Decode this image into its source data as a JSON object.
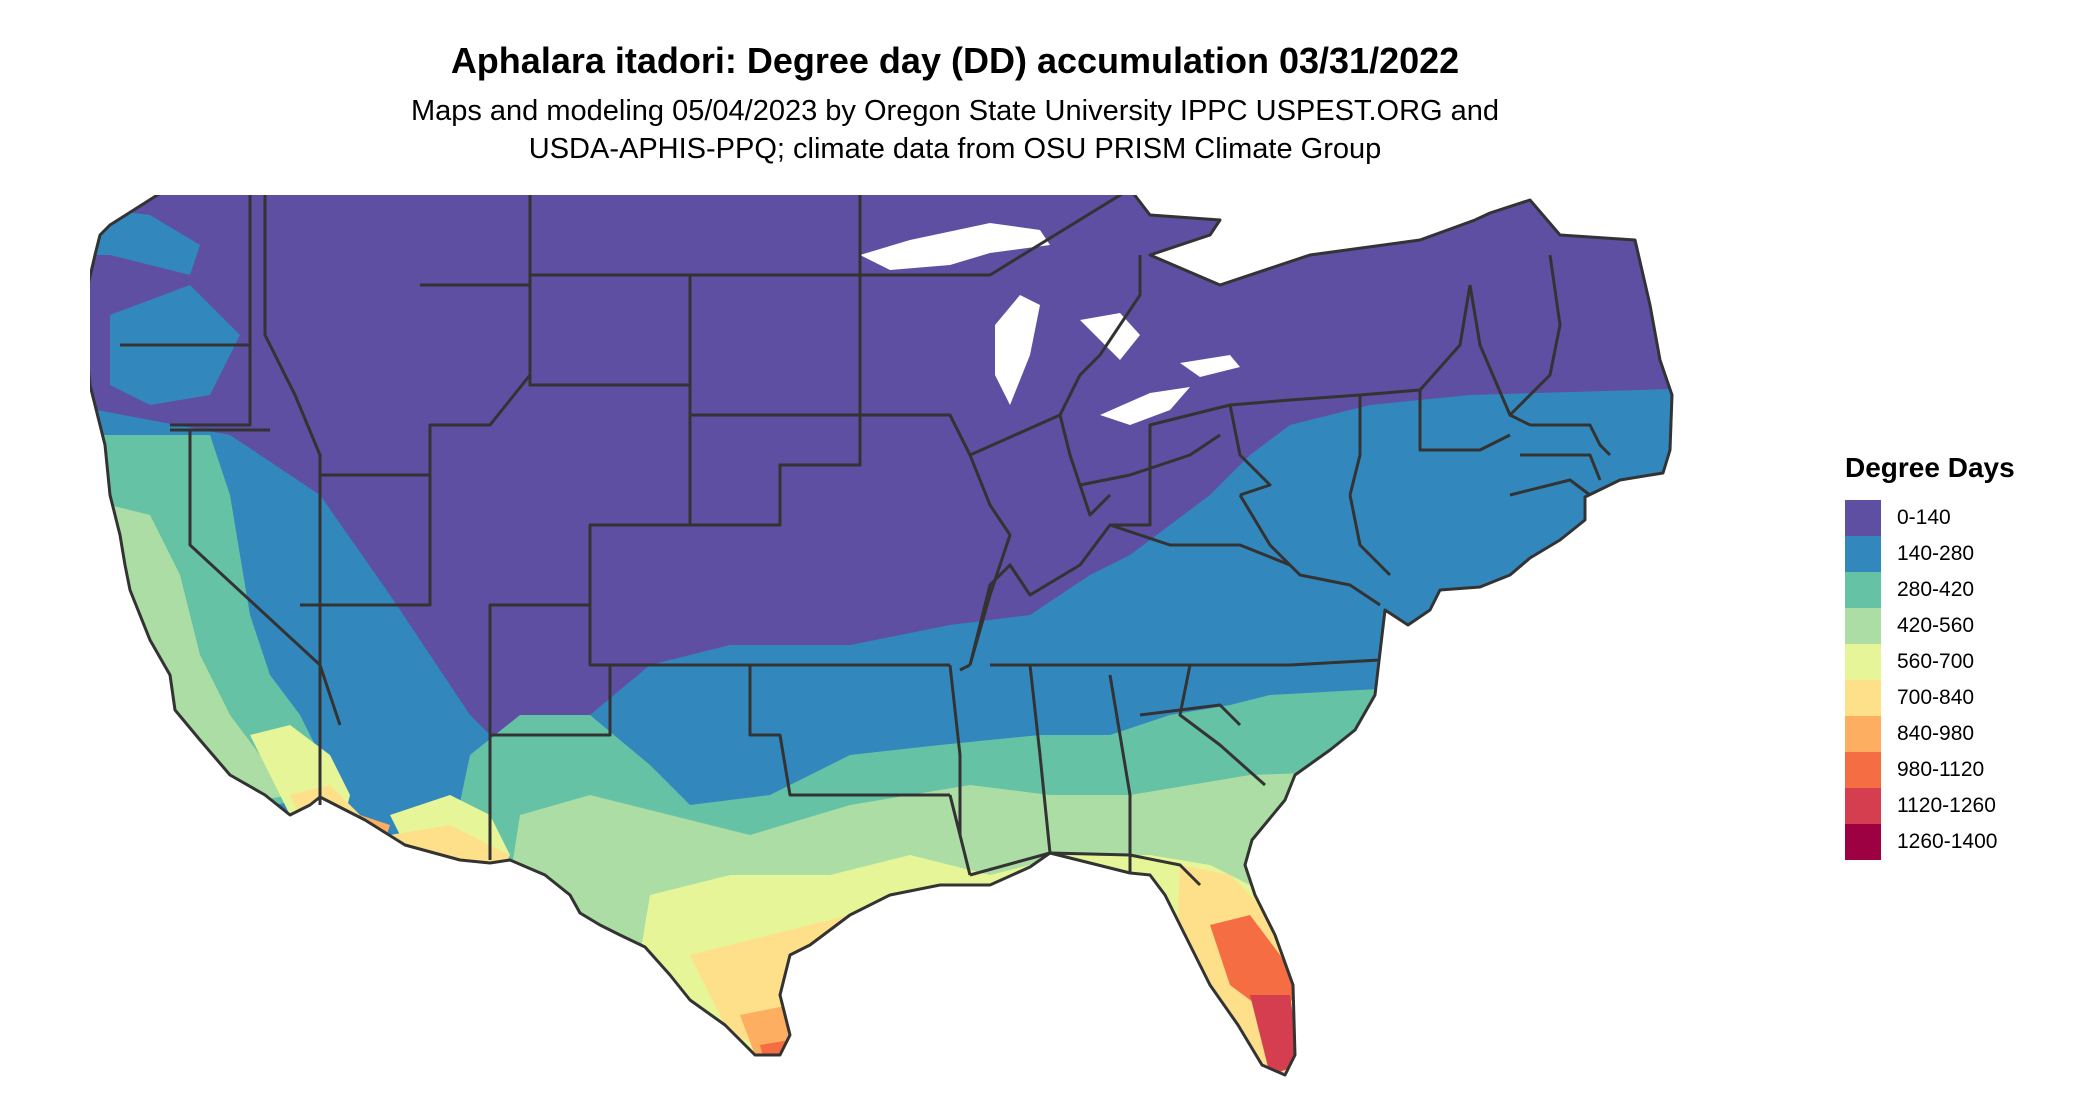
{
  "title": "Aphalara itadori: Degree day (DD) accumulation 03/31/2022",
  "subtitle": {
    "line1": "Maps and modeling 05/04/2023 by Oregon State University IPPC USPEST.ORG and",
    "line2": "USDA-APHIS-PPQ; climate data from OSU PRISM Climate Group"
  },
  "legend": {
    "title": "Degree Days",
    "items": [
      {
        "label": "0-140",
        "color": "#5e4fa2"
      },
      {
        "label": "140-280",
        "color": "#3288bd"
      },
      {
        "label": "280-420",
        "color": "#66c2a5"
      },
      {
        "label": "420-560",
        "color": "#abdda4"
      },
      {
        "label": "560-700",
        "color": "#e6f598"
      },
      {
        "label": "700-840",
        "color": "#fee08b"
      },
      {
        "label": "840-980",
        "color": "#fdae61"
      },
      {
        "label": "980-1120",
        "color": "#f46d43"
      },
      {
        "label": "1120-1260",
        "color": "#d53e4f"
      },
      {
        "label": "1260-1400",
        "color": "#9e0142"
      }
    ]
  },
  "map": {
    "region": "Contiguous United States",
    "border_color": "#333333"
  }
}
